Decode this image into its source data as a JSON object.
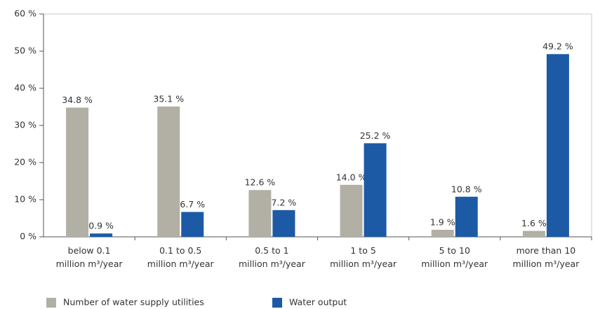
{
  "chart_data": {
    "type": "bar",
    "categories": [
      [
        "below 0.1",
        "million m³/year"
      ],
      [
        "0.1 to 0.5",
        "million m³/year"
      ],
      [
        "0.5 to 1",
        "million m³/year"
      ],
      [
        "1 to 5",
        "million m³/year"
      ],
      [
        "5 to 10",
        "million m³/year"
      ],
      [
        "more than 10",
        "million m³/year"
      ]
    ],
    "series": [
      {
        "name": "Number of water supply utilities",
        "color": "#b2b0a5",
        "values": [
          34.8,
          35.1,
          12.6,
          14.0,
          1.9,
          1.6
        ],
        "value_labels": [
          "34.8 %",
          "35.1 %",
          "12.6 %",
          "14.0 %",
          "1.9 %",
          "1.6 %"
        ]
      },
      {
        "name": "Water output",
        "color": "#1c5aa6",
        "values": [
          0.9,
          6.7,
          7.2,
          25.2,
          10.8,
          49.2
        ],
        "value_labels": [
          "0.9 %",
          "6.7 %",
          "7.2 %",
          "25.2 %",
          "10.8 %",
          "49.2 %"
        ]
      }
    ],
    "ylim": [
      0,
      60
    ],
    "yticks": [
      {
        "value": 0,
        "label": "0 %"
      },
      {
        "value": 10,
        "label": "10 %"
      },
      {
        "value": 20,
        "label": "20 %"
      },
      {
        "value": 30,
        "label": "30 %"
      },
      {
        "value": 40,
        "label": "40 %"
      },
      {
        "value": 50,
        "label": "50 %"
      },
      {
        "value": 60,
        "label": "60 %"
      }
    ],
    "legend": "bottom"
  }
}
